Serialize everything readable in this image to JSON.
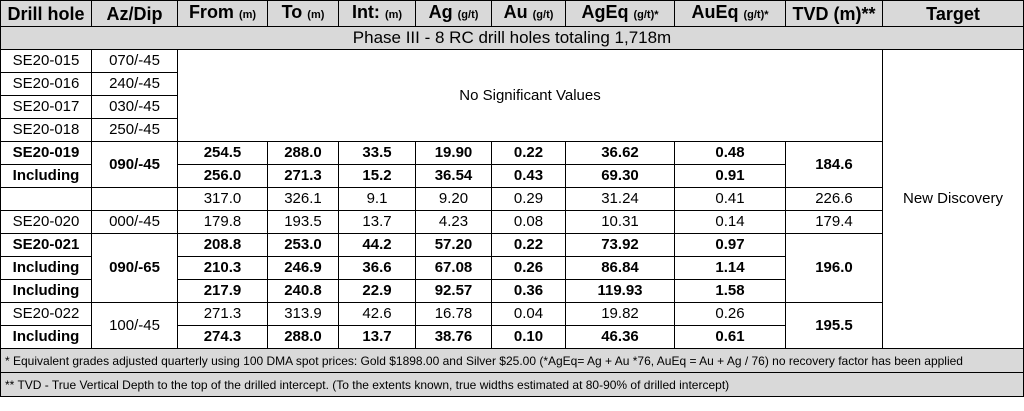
{
  "headers": {
    "drill_hole": "Drill hole",
    "az_dip": "Az/Dip",
    "from": "From",
    "from_unit": "(m)",
    "to": "To",
    "to_unit": "(m)",
    "int": "Int:",
    "int_unit": "(m)",
    "ag": "Ag",
    "ag_unit": "(g/t)",
    "au": "Au",
    "au_unit": "(g/t)",
    "ageq": "AgEq",
    "ageq_unit": "(g/t)*",
    "aueq": "AuEq",
    "aueq_unit": "(g/t)*",
    "tvd": "TVD (m)**",
    "target": "Target"
  },
  "phase_title": "Phase III - 8 RC drill holes totaling 1,718m",
  "no_values_text": "No Significant Values",
  "target_text": "New Discovery",
  "rows": [
    {
      "hole": "SE20-015",
      "azdip": "070/-45"
    },
    {
      "hole": "SE20-016",
      "azdip": "240/-45"
    },
    {
      "hole": "SE20-017",
      "azdip": "030/-45"
    },
    {
      "hole": "SE20-018",
      "azdip": "250/-45"
    },
    {
      "hole": "SE20-019",
      "azdip": "090/-45",
      "from": "254.5",
      "to": "288.0",
      "int": "33.5",
      "ag": "19.90",
      "au": "0.22",
      "ageq": "36.62",
      "aueq": "0.48",
      "tvd": "184.6"
    },
    {
      "hole": "Including",
      "from": "256.0",
      "to": "271.3",
      "int": "15.2",
      "ag": "36.54",
      "au": "0.43",
      "ageq": "69.30",
      "aueq": "0.91"
    },
    {
      "hole": "",
      "from": "317.0",
      "to": "326.1",
      "int": "9.1",
      "ag": "9.20",
      "au": "0.29",
      "ageq": "31.24",
      "aueq": "0.41",
      "tvd": "226.6"
    },
    {
      "hole": "SE20-020",
      "azdip": "000/-45",
      "from": "179.8",
      "to": "193.5",
      "int": "13.7",
      "ag": "4.23",
      "au": "0.08",
      "ageq": "10.31",
      "aueq": "0.14",
      "tvd": "179.4"
    },
    {
      "hole": "SE20-021",
      "azdip": "090/-65",
      "from": "208.8",
      "to": "253.0",
      "int": "44.2",
      "ag": "57.20",
      "au": "0.22",
      "ageq": "73.92",
      "aueq": "0.97",
      "tvd": "196.0"
    },
    {
      "hole": "Including",
      "from": "210.3",
      "to": "246.9",
      "int": "36.6",
      "ag": "67.08",
      "au": "0.26",
      "ageq": "86.84",
      "aueq": "1.14"
    },
    {
      "hole": "Including",
      "from": "217.9",
      "to": "240.8",
      "int": "22.9",
      "ag": "92.57",
      "au": "0.36",
      "ageq": "119.93",
      "aueq": "1.58"
    },
    {
      "hole": "SE20-022",
      "azdip": "100/-45",
      "from": "271.3",
      "to": "313.9",
      "int": "42.6",
      "ag": "16.78",
      "au": "0.04",
      "ageq": "19.82",
      "aueq": "0.26",
      "tvd": "195.5"
    },
    {
      "hole": "Including",
      "from": "274.3",
      "to": "288.0",
      "int": "13.7",
      "ag": "38.76",
      "au": "0.10",
      "ageq": "46.36",
      "aueq": "0.61"
    }
  ],
  "footnotes": [
    "* Equivalent grades adjusted quarterly using 100 DMA spot prices: Gold $1898.00 and Silver $25.00 (*AgEq= Ag + Au *76, AuEq = Au + Ag / 76) no recovery factor has been applied",
    "** TVD - True Vertical Depth to the top of the drilled intercept. (To the extents known, true widths estimated at 80-90% of drilled intercept)"
  ]
}
